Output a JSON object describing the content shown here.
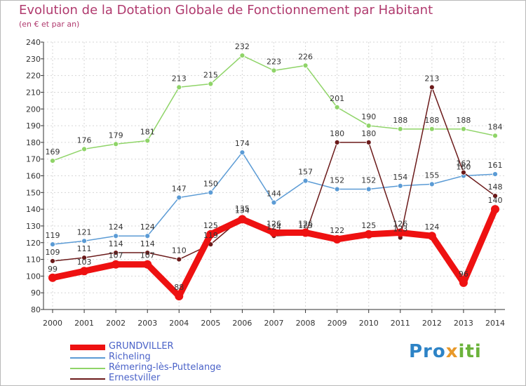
{
  "title": "Evolution de la Dotation Globale de Fonctionnement par Habitant",
  "subtitle": "(en € et par an)",
  "colors": {
    "title": "#b03a6e",
    "grundviller": "#ee1111",
    "richeling": "#5b9bd5",
    "remering": "#8fd468",
    "ernestviller": "#6b1a1a"
  },
  "logo": {
    "part1": "Pro",
    "part2": "x",
    "part3": "iti"
  },
  "chart_data": {
    "type": "line",
    "title": "Evolution de la Dotation Globale de Fonctionnement par Habitant",
    "subtitle": "(en € et par an)",
    "x": [
      "2000",
      "2001",
      "2002",
      "2003",
      "2004",
      "2005",
      "2006",
      "2007",
      "2008",
      "2009",
      "2010",
      "2011",
      "2012",
      "2013",
      "2014"
    ],
    "ylim": [
      80,
      240
    ],
    "yticks": [
      80,
      90,
      100,
      110,
      120,
      130,
      140,
      150,
      160,
      170,
      180,
      190,
      200,
      210,
      220,
      230,
      240
    ],
    "grid": true,
    "legend": "bottom-left",
    "series": [
      {
        "name": "GRUNDVILLER",
        "key": "grundviller",
        "values": [
          99,
          103,
          107,
          107,
          88,
          125,
          134,
          126,
          126,
          122,
          125,
          126,
          124,
          96,
          140
        ]
      },
      {
        "name": "Richeling",
        "key": "richeling",
        "values": [
          119,
          121,
          124,
          124,
          147,
          150,
          174,
          144,
          157,
          152,
          152,
          154,
          155,
          160,
          161
        ]
      },
      {
        "name": "Rémering-lès-Puttelange",
        "key": "remering",
        "values": [
          169,
          176,
          179,
          181,
          213,
          215,
          232,
          223,
          226,
          201,
          190,
          188,
          188,
          188,
          184
        ]
      },
      {
        "name": "Ernestviller",
        "key": "ernestviller",
        "values": [
          109,
          111,
          114,
          114,
          110,
          119,
          135,
          124,
          125,
          180,
          180,
          123,
          213,
          162,
          148
        ]
      }
    ]
  }
}
